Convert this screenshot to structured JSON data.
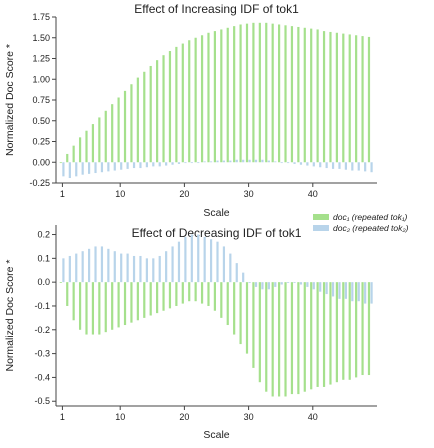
{
  "colors": {
    "doc1": "#a5e08c",
    "doc2": "#b8d4ea",
    "axis": "#444444"
  },
  "legend": {
    "doc1_label": "doc₁ (repeated tok₁)",
    "doc2_label": "doc₂ (repeated tok₂)"
  },
  "chart_data": [
    {
      "type": "bar",
      "title": "Effect of Increasing IDF of tok1",
      "xlabel": "Scale",
      "ylabel": "Normalized Doc Score *",
      "xlim": [
        0,
        50
      ],
      "ylim": [
        -0.25,
        1.75
      ],
      "xticks": [
        1,
        10,
        20,
        30,
        40
      ],
      "yticks": [
        {
          "v": -0.25,
          "label": "-0.25"
        },
        {
          "v": 0.0,
          "label": "0.00"
        },
        {
          "v": 0.25,
          "label": "0.25"
        },
        {
          "v": 0.5,
          "label": "0.50"
        },
        {
          "v": 0.75,
          "label": "0.75"
        },
        {
          "v": 1.0,
          "label": "1.00"
        },
        {
          "v": 1.25,
          "label": "1.25"
        },
        {
          "v": 1.5,
          "label": "1.50"
        },
        {
          "v": 1.75,
          "label": "1.75"
        }
      ],
      "x": [
        1,
        2,
        3,
        4,
        5,
        6,
        7,
        8,
        9,
        10,
        11,
        12,
        13,
        14,
        15,
        16,
        17,
        18,
        19,
        20,
        21,
        22,
        23,
        24,
        25,
        26,
        27,
        28,
        29,
        30,
        31,
        32,
        33,
        34,
        35,
        36,
        37,
        38,
        39,
        40,
        41,
        42,
        43,
        44,
        45,
        46,
        47,
        48,
        49
      ],
      "series": [
        {
          "name": "doc₁ (repeated tok₁)",
          "values": [
            0.0,
            0.1,
            0.2,
            0.3,
            0.38,
            0.46,
            0.54,
            0.62,
            0.7,
            0.78,
            0.86,
            0.94,
            1.02,
            1.09,
            1.16,
            1.23,
            1.29,
            1.34,
            1.39,
            1.43,
            1.47,
            1.5,
            1.53,
            1.56,
            1.58,
            1.6,
            1.62,
            1.64,
            1.66,
            1.67,
            1.68,
            1.68,
            1.68,
            1.67,
            1.66,
            1.65,
            1.64,
            1.63,
            1.62,
            1.61,
            1.6,
            1.58,
            1.57,
            1.56,
            1.55,
            1.54,
            1.53,
            1.52,
            1.51
          ]
        },
        {
          "name": "doc₂ (repeated tok₂)",
          "values": [
            -0.17,
            -0.19,
            -0.17,
            -0.15,
            -0.14,
            -0.13,
            -0.12,
            -0.11,
            -0.1,
            -0.09,
            -0.08,
            -0.07,
            -0.07,
            -0.06,
            -0.05,
            -0.05,
            -0.04,
            -0.03,
            -0.02,
            -0.01,
            0.0,
            0.0,
            0.01,
            0.01,
            0.02,
            0.02,
            0.02,
            0.03,
            0.03,
            0.03,
            0.03,
            0.03,
            0.02,
            0.01,
            0.0,
            -0.01,
            -0.02,
            -0.03,
            -0.04,
            -0.05,
            -0.06,
            -0.07,
            -0.08,
            -0.08,
            -0.09,
            -0.1,
            -0.1,
            -0.11,
            -0.12
          ]
        }
      ]
    },
    {
      "type": "bar",
      "title": "Effect of Decreasing IDF of tok1",
      "xlabel": "Scale",
      "ylabel": "Normalized Doc Score *",
      "xlim": [
        0,
        50
      ],
      "ylim": [
        -0.52,
        0.24
      ],
      "xticks": [
        1,
        10,
        20,
        30,
        40
      ],
      "yticks": [
        {
          "v": -0.5,
          "label": "-0.5"
        },
        {
          "v": -0.4,
          "label": "-0.4"
        },
        {
          "v": -0.3,
          "label": "-0.3"
        },
        {
          "v": -0.2,
          "label": "-0.2"
        },
        {
          "v": -0.1,
          "label": "-0.1"
        },
        {
          "v": 0.0,
          "label": "0.0"
        },
        {
          "v": 0.1,
          "label": "0.1"
        },
        {
          "v": 0.2,
          "label": "0.2"
        }
      ],
      "x": [
        1,
        2,
        3,
        4,
        5,
        6,
        7,
        8,
        9,
        10,
        11,
        12,
        13,
        14,
        15,
        16,
        17,
        18,
        19,
        20,
        21,
        22,
        23,
        24,
        25,
        26,
        27,
        28,
        29,
        30,
        31,
        32,
        33,
        34,
        35,
        36,
        37,
        38,
        39,
        40,
        41,
        42,
        43,
        44,
        45,
        46,
        47,
        48,
        49
      ],
      "series": [
        {
          "name": "doc₁ (repeated tok₁)",
          "values": [
            0.0,
            -0.1,
            -0.16,
            -0.2,
            -0.22,
            -0.22,
            -0.22,
            -0.21,
            -0.2,
            -0.19,
            -0.18,
            -0.17,
            -0.16,
            -0.15,
            -0.14,
            -0.13,
            -0.12,
            -0.11,
            -0.1,
            -0.09,
            -0.08,
            -0.08,
            -0.09,
            -0.1,
            -0.12,
            -0.15,
            -0.18,
            -0.22,
            -0.26,
            -0.3,
            -0.36,
            -0.42,
            -0.46,
            -0.48,
            -0.48,
            -0.48,
            -0.47,
            -0.47,
            -0.46,
            -0.45,
            -0.44,
            -0.44,
            -0.43,
            -0.42,
            -0.41,
            -0.41,
            -0.4,
            -0.39,
            -0.39
          ]
        },
        {
          "name": "doc₂ (repeated tok₂)",
          "values": [
            0.1,
            0.11,
            0.12,
            0.13,
            0.14,
            0.15,
            0.15,
            0.14,
            0.13,
            0.12,
            0.12,
            0.11,
            0.11,
            0.1,
            0.1,
            0.11,
            0.13,
            0.15,
            0.17,
            0.19,
            0.2,
            0.2,
            0.19,
            0.18,
            0.17,
            0.15,
            0.12,
            0.08,
            0.04,
            0.0,
            -0.02,
            -0.03,
            -0.03,
            -0.02,
            -0.01,
            0.0,
            0.0,
            -0.01,
            -0.02,
            -0.03,
            -0.04,
            -0.05,
            -0.06,
            -0.07,
            -0.07,
            -0.08,
            -0.08,
            -0.09,
            -0.09
          ]
        }
      ]
    }
  ]
}
